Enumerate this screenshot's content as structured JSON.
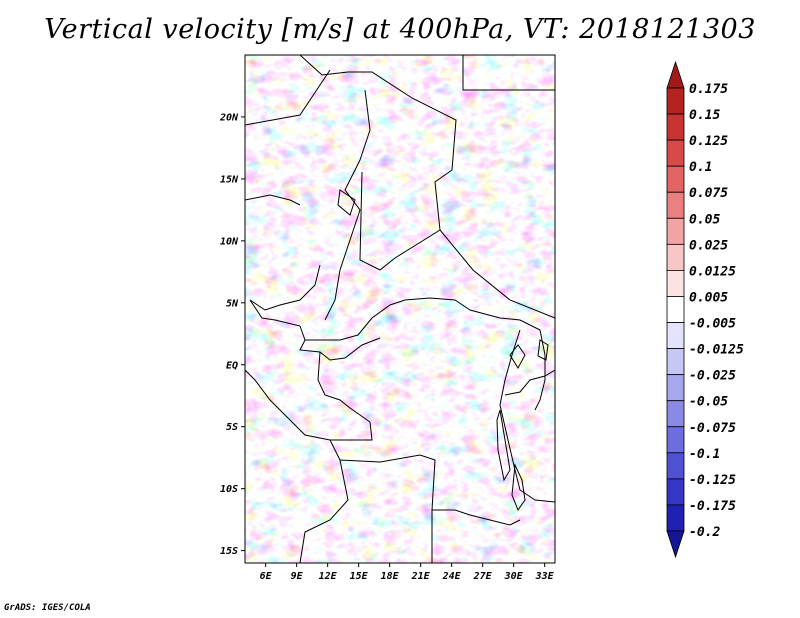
{
  "title": "Vertical velocity [m/s] at 400hPa, VT: 2018121303",
  "credit": "GrADS: IGES/COLA",
  "map": {
    "lat_labels": [
      "20N",
      "15N",
      "10N",
      "5N",
      "EQ",
      "5S",
      "10S",
      "15S"
    ],
    "lon_labels": [
      "6E",
      "9E",
      "12E",
      "15E",
      "18E",
      "21E",
      "24E",
      "27E",
      "30E",
      "33E"
    ],
    "lat_range": [
      -16,
      25
    ],
    "lon_range": [
      4,
      34
    ]
  },
  "colorbar": {
    "labels": [
      "0.175",
      "0.15",
      "0.125",
      "0.1",
      "0.075",
      "0.05",
      "0.025",
      "0.0125",
      "0.005",
      "-0.005",
      "-0.0125",
      "-0.025",
      "-0.05",
      "-0.075",
      "-0.1",
      "-0.125",
      "-0.175",
      "-0.2"
    ],
    "colors": [
      "#a11a1a",
      "#b42222",
      "#c83232",
      "#d84a4a",
      "#e26464",
      "#ea8080",
      "#f2a3a3",
      "#f7c6c6",
      "#fbe3e3",
      "#ffffff",
      "#e3e3fb",
      "#c7c7f5",
      "#a7a7ee",
      "#8a8ae6",
      "#6d6ddd",
      "#5050d2",
      "#3636c5",
      "#2020b5",
      "#151598"
    ]
  }
}
